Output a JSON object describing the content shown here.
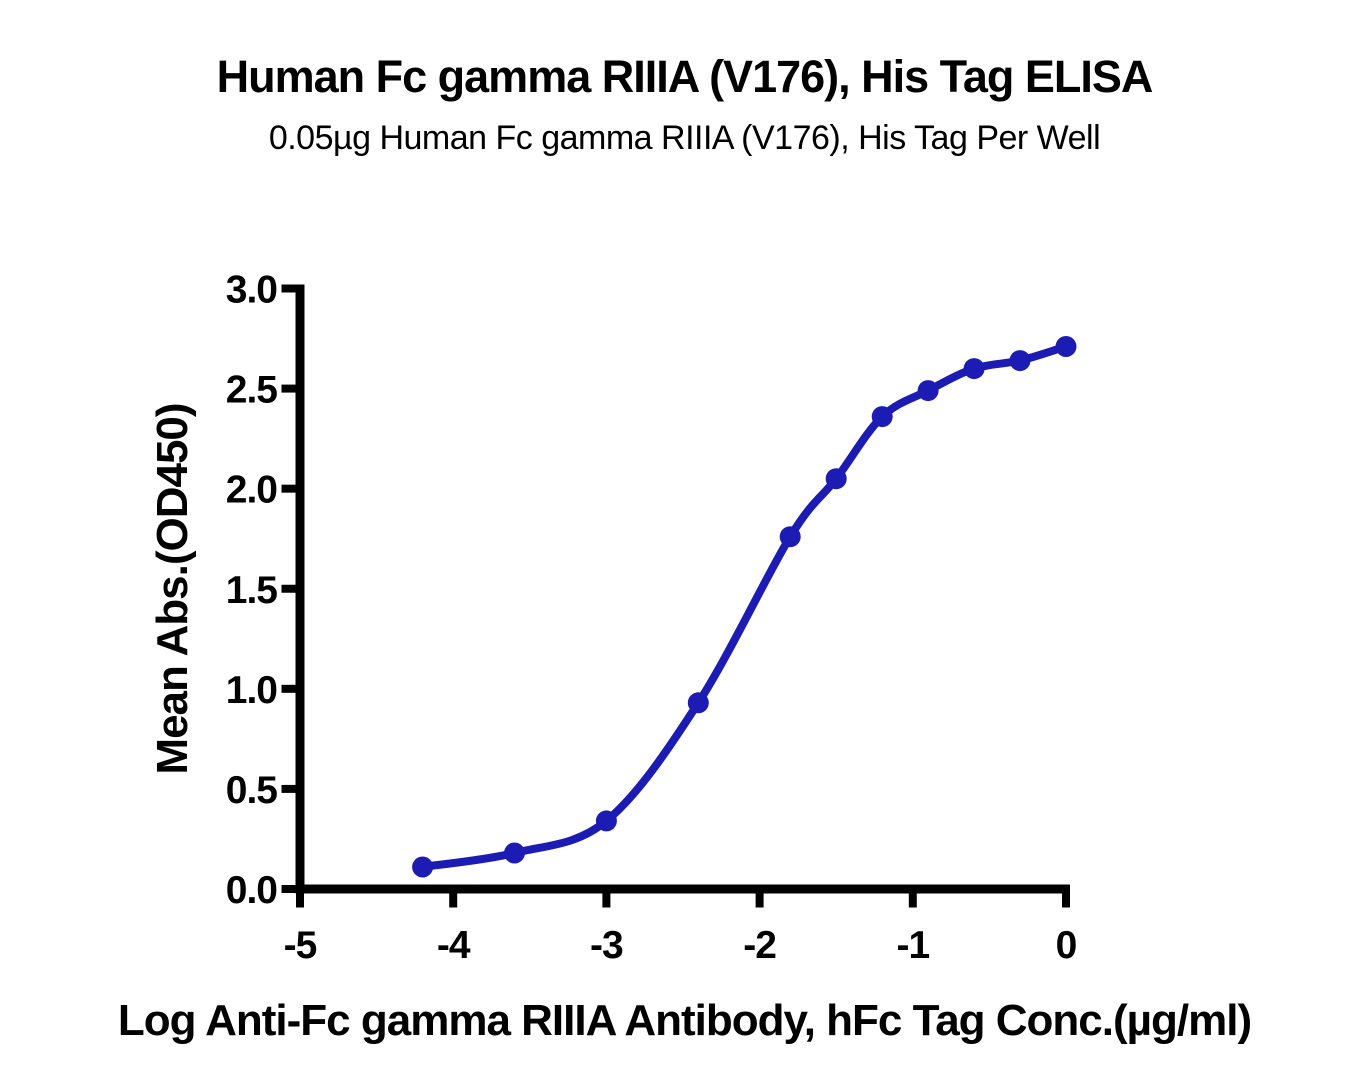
{
  "chart_data": {
    "type": "line",
    "title": "Human Fc gamma RIIIA (V176), His Tag ELISA",
    "subtitle": "0.05µg Human Fc gamma RIIIA (V176), His Tag Per Well",
    "xlabel": "Log Anti-Fc gamma RIIIA Antibody, hFc Tag Conc.(µg/ml)",
    "ylabel": "Mean Abs.(OD450)",
    "series": [
      {
        "name": "Anti-Fc gamma RIIIA Antibody, hFc Tag",
        "x": [
          -4.2,
          -3.6,
          -3.0,
          -2.4,
          -1.8,
          -1.5,
          -1.2,
          -0.9,
          -0.6,
          -0.3,
          0.0
        ],
        "y": [
          0.11,
          0.18,
          0.34,
          0.93,
          1.76,
          2.05,
          2.36,
          2.49,
          2.6,
          2.64,
          2.71
        ]
      }
    ],
    "xlim": [
      -5,
      0
    ],
    "ylim": [
      0,
      3
    ],
    "x_ticks": {
      "values": [
        -5,
        -4,
        -3,
        -2,
        -1,
        0
      ],
      "labels": [
        "-5",
        "-4",
        "-3",
        "-2",
        "-1",
        "0"
      ]
    },
    "y_ticks": {
      "values": [
        0,
        0.5,
        1,
        1.5,
        2,
        2.5,
        3
      ],
      "labels": [
        "0.0",
        "0.5",
        "1.0",
        "1.5",
        "2.0",
        "2.5",
        "3.0"
      ]
    },
    "grid": false,
    "legend": "none",
    "curve_color": "#1C1CB4",
    "axis_color": "#000000",
    "background_color": "#FFFFFF"
  }
}
